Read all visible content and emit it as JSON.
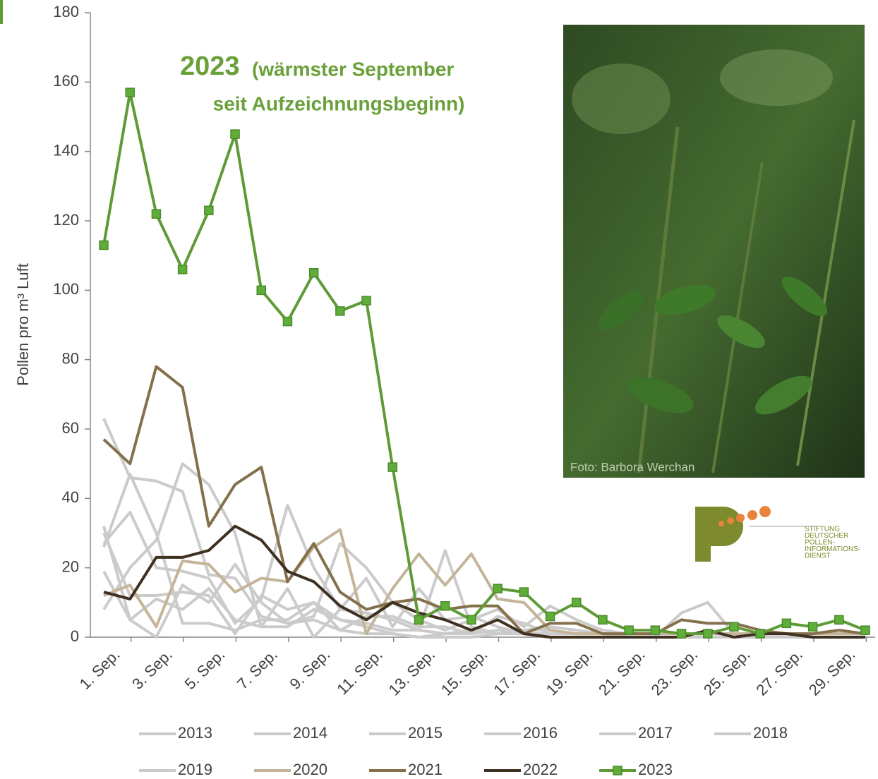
{
  "chart_data": {
    "type": "line",
    "annotation": {
      "year": "2023",
      "text1": "(wärmster September",
      "text2": "seit Aufzeichnungsbeginn)"
    },
    "ylabel": "Pollen pro m³ Luft",
    "photo_credit": "Foto: Barbora Werchan",
    "logo_text": [
      "STIFTUNG",
      "DEUTSCHER",
      "POLLEN-",
      "INFORMATIONS-",
      "DIENST"
    ],
    "categories": [
      "1. Sep.",
      null,
      "3. Sep.",
      null,
      "5. Sep.",
      null,
      "7. Sep.",
      null,
      "9. Sep.",
      null,
      "11. Sep.",
      null,
      "13. Sep.",
      null,
      "15. Sep.",
      null,
      "17. Sep.",
      null,
      "19. Sep.",
      null,
      "21. Sep.",
      null,
      "23. Sep.",
      null,
      "25. Sep.",
      null,
      "27. Sep.",
      null,
      "29. Sep.",
      null
    ],
    "ylim": [
      0,
      180
    ],
    "yticks": [
      0,
      20,
      40,
      60,
      80,
      100,
      120,
      140,
      160,
      180
    ],
    "series": [
      {
        "name": "2013",
        "color": "#cbcbcb",
        "values": [
          63,
          46,
          45,
          42,
          18,
          17,
          6,
          4,
          5,
          2,
          1,
          1,
          0,
          0,
          0,
          1,
          1,
          0,
          0,
          0,
          0,
          0,
          7,
          10,
          1,
          0,
          0,
          0,
          0,
          0
        ]
      },
      {
        "name": "2014",
        "color": "#cbcbcb",
        "values": [
          32,
          5,
          11,
          8,
          14,
          5,
          3,
          3,
          8,
          5,
          3,
          1,
          0,
          1,
          2,
          1,
          2,
          3,
          2,
          1,
          1,
          1,
          1,
          1,
          1,
          1,
          1,
          0,
          0,
          0
        ]
      },
      {
        "name": "2015",
        "color": "#cbcbcb",
        "values": [
          27,
          36,
          20,
          19,
          17,
          4,
          11,
          38,
          20,
          8,
          17,
          3,
          14,
          5,
          6,
          3,
          1,
          1,
          1,
          1,
          0,
          0,
          0,
          0,
          0,
          0,
          0,
          0,
          0,
          0
        ]
      },
      {
        "name": "2016",
        "color": "#cbcbcb",
        "values": [
          19,
          5,
          0,
          15,
          10,
          21,
          10,
          4,
          6,
          27,
          20,
          10,
          5,
          2,
          5,
          8,
          3,
          9,
          5,
          2,
          1,
          1,
          1,
          1,
          1,
          1,
          1,
          0,
          0,
          0
        ]
      },
      {
        "name": "2017",
        "color": "#cbcbcb",
        "values": [
          8,
          20,
          28,
          50,
          44,
          30,
          3,
          14,
          0,
          8,
          7,
          5,
          2,
          25,
          3,
          1,
          1,
          1,
          1,
          1,
          1,
          1,
          1,
          1,
          1,
          1,
          1,
          1,
          1,
          1
        ]
      },
      {
        "name": "2018",
        "color": "#cbcbcb",
        "values": [
          26,
          47,
          30,
          4,
          4,
          2,
          5,
          5,
          10,
          2,
          6,
          6,
          3,
          3,
          1,
          6,
          4,
          1,
          1,
          1,
          1,
          1,
          1,
          1,
          1,
          1,
          1,
          1,
          1,
          1
        ]
      },
      {
        "name": "2019",
        "color": "#cbcbcb",
        "values": [
          30,
          12,
          12,
          13,
          12,
          1,
          12,
          8,
          10,
          5,
          4,
          2,
          2,
          1,
          1,
          2,
          2,
          2,
          1,
          1,
          1,
          1,
          1,
          1,
          1,
          1,
          1,
          1,
          1,
          1
        ]
      },
      {
        "name": "2020",
        "color": "#c4b598",
        "values": [
          12,
          15,
          3,
          22,
          21,
          13,
          17,
          16,
          26,
          31,
          1,
          14,
          24,
          15,
          24,
          11,
          10,
          2,
          1,
          1,
          1,
          1,
          1,
          1,
          1,
          1,
          1,
          1,
          1,
          1
        ]
      },
      {
        "name": "2021",
        "color": "#85704c",
        "values": [
          57,
          50,
          78,
          72,
          32,
          44,
          49,
          16,
          27,
          13,
          8,
          10,
          11,
          8,
          9,
          9,
          1,
          4,
          4,
          1,
          1,
          1,
          5,
          4,
          4,
          2,
          1,
          1,
          2,
          1
        ]
      },
      {
        "name": "2022",
        "color": "#3e3122",
        "values": [
          13,
          11,
          23,
          23,
          25,
          32,
          28,
          19,
          16,
          9,
          5,
          10,
          7,
          5,
          2,
          5,
          1,
          0,
          0,
          0,
          0,
          0,
          0,
          2,
          0,
          1,
          1,
          0,
          0,
          0
        ]
      },
      {
        "name": "2023",
        "color": "#5e9b37",
        "marker": "square",
        "values": [
          113,
          157,
          122,
          106,
          123,
          145,
          100,
          91,
          105,
          94,
          97,
          49,
          5,
          9,
          5,
          14,
          13,
          6,
          10,
          5,
          2,
          2,
          1,
          1,
          3,
          1,
          4,
          3,
          5,
          2
        ]
      }
    ]
  }
}
